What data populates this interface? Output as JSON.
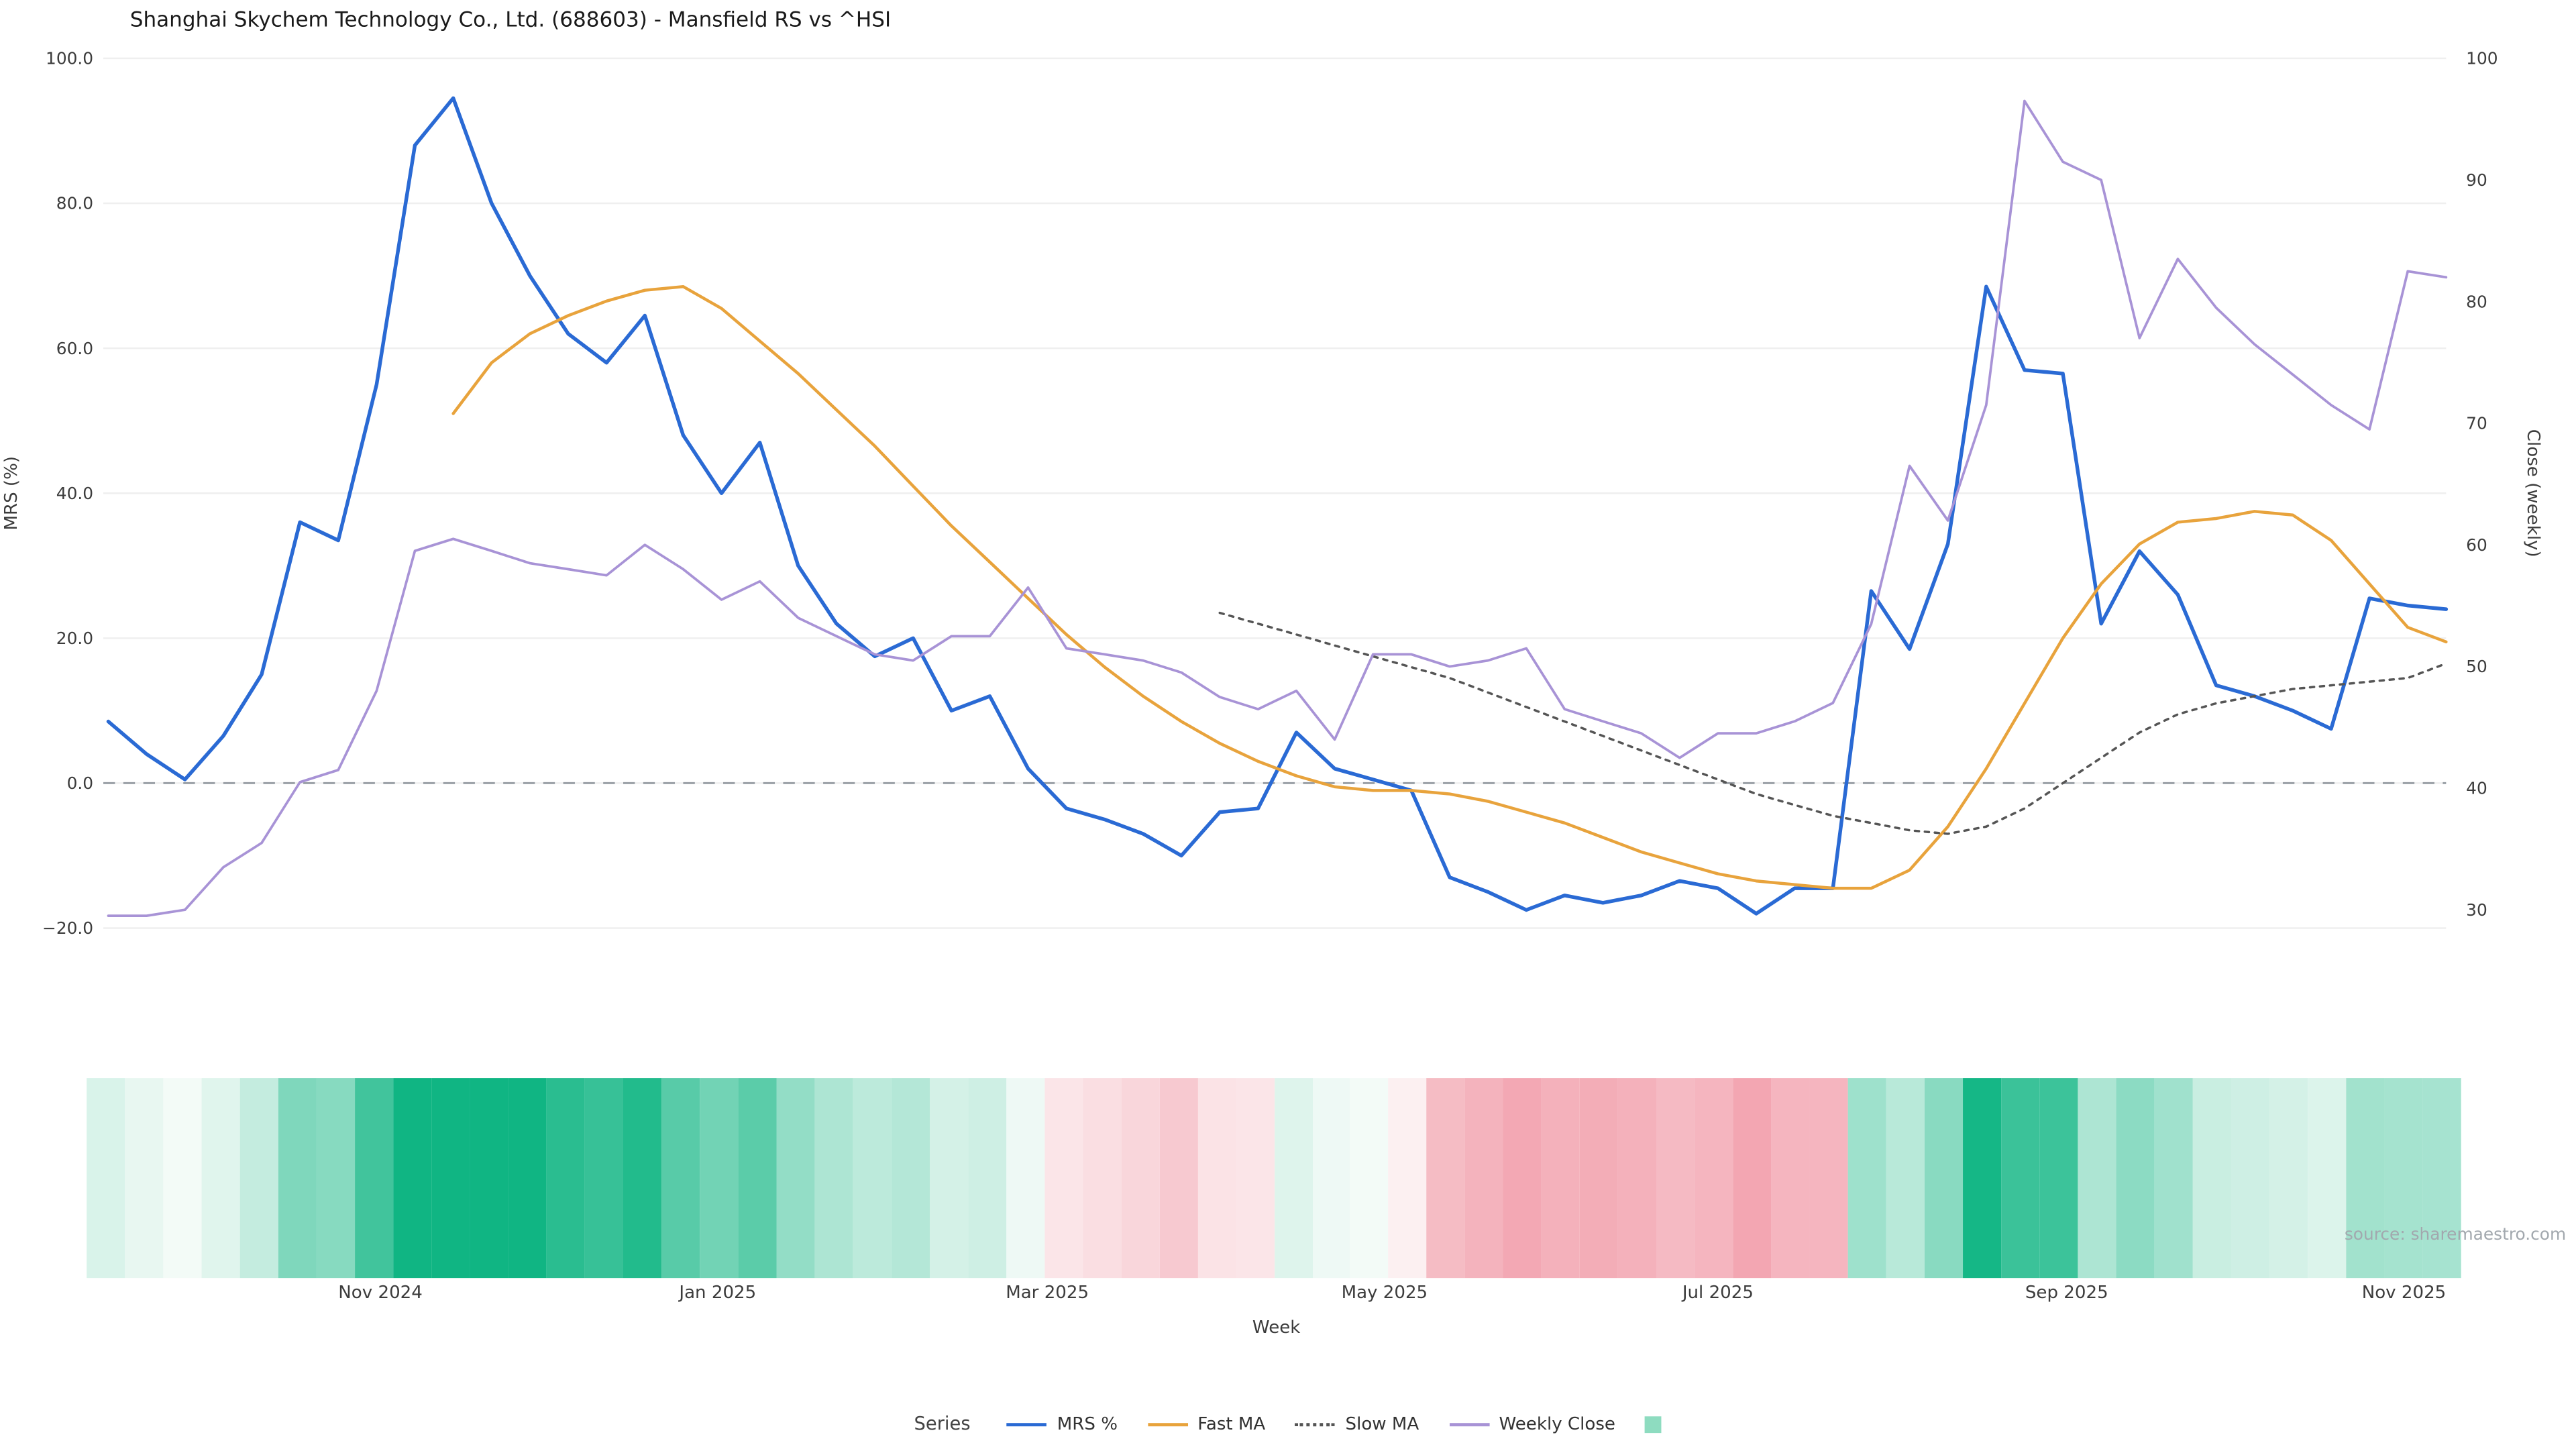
{
  "title": "Shanghai Skychem Technology Co., Ltd. (688603) - Mansfield RS vs ^HSI",
  "source_note": "source: sharemaestro.com",
  "axes": {
    "left": {
      "label": "MRS (%)",
      "ticks": [
        {
          "label": "100.0",
          "value": 100
        },
        {
          "label": "80.0",
          "value": 80
        },
        {
          "label": "60.0",
          "value": 60
        },
        {
          "label": "40.0",
          "value": 40
        },
        {
          "label": "20.0",
          "value": 20
        },
        {
          "label": "0.0",
          "value": 0
        },
        {
          "label": "−20.0",
          "value": -20
        }
      ]
    },
    "right": {
      "label": "Close (weekly)",
      "ticks": [
        {
          "label": "100",
          "value": 100
        },
        {
          "label": "90",
          "value": 90
        },
        {
          "label": "80",
          "value": 80
        },
        {
          "label": "70",
          "value": 70
        },
        {
          "label": "60",
          "value": 60
        },
        {
          "label": "50",
          "value": 50
        },
        {
          "label": "40",
          "value": 40
        },
        {
          "label": "30",
          "value": 30
        }
      ]
    },
    "x": {
      "label": "Week",
      "ticks": [
        {
          "label": "Nov 2024",
          "pos": 7.1
        },
        {
          "label": "Jan 2025",
          "pos": 15.9
        },
        {
          "label": "Mar 2025",
          "pos": 24.5
        },
        {
          "label": "May 2025",
          "pos": 33.3
        },
        {
          "label": "Jul 2025",
          "pos": 42.0
        },
        {
          "label": "Sep 2025",
          "pos": 51.1
        },
        {
          "label": "Nov 2025",
          "pos": 59.9
        }
      ]
    }
  },
  "legend": {
    "title": "Series",
    "items": [
      {
        "label": "MRS %",
        "swatch": "line",
        "color": "#2a6ad4"
      },
      {
        "label": "Fast MA",
        "swatch": "line",
        "color": "#e8a33c"
      },
      {
        "label": "Slow MA",
        "swatch": "dotted",
        "color": "#555555"
      },
      {
        "label": "Weekly Close",
        "swatch": "line",
        "color": "#a893d6"
      },
      {
        "label": "",
        "swatch": "square",
        "color": "#8edcc0"
      }
    ]
  },
  "chart_data": {
    "type": "line",
    "title": "Shanghai Skychem Technology Co., Ltd. (688603) - Mansfield RS vs ^HSI",
    "xlabel": "Week",
    "ylabel_left": "MRS (%)",
    "ylabel_right": "Close (weekly)",
    "x_unit": "weekly points, Oct 2024 through Nov 2025",
    "n_points": 62,
    "x_tick_labels": [
      "Nov 2024",
      "Jan 2025",
      "Mar 2025",
      "May 2025",
      "Jul 2025",
      "Sep 2025",
      "Nov 2025"
    ],
    "left_ylim": [
      -25.7,
      100
    ],
    "right_ylim": [
      28.4,
      100
    ],
    "zero_reference_line": 0,
    "grid": "horizontal, faint",
    "legend_position": "bottom center",
    "series": [
      {
        "name": "MRS %",
        "axis": "left",
        "color": "#2a6ad4",
        "style": "solid",
        "width": 2.2,
        "values": [
          8.5,
          4,
          0.5,
          6.5,
          15,
          36,
          33.5,
          55,
          88,
          94.5,
          80,
          70,
          62,
          58,
          64.5,
          48,
          40,
          47,
          30,
          22,
          17.5,
          20,
          10,
          12,
          2,
          -3.5,
          -5,
          -7,
          -10,
          -4,
          -3.5,
          7,
          2,
          0.5,
          -1,
          -13,
          -15,
          -17.5,
          -15.5,
          -16.5,
          -15.5,
          -13.5,
          -14.5,
          -18,
          -14.5,
          -14.5,
          26.5,
          18.5,
          33,
          68.5,
          57,
          56.5,
          22,
          32,
          26,
          13.5,
          12,
          10,
          7.5,
          25.5,
          24.5,
          24
        ]
      },
      {
        "name": "Fast MA",
        "axis": "left",
        "color": "#e8a33c",
        "style": "solid",
        "width": 1.8,
        "values": [
          null,
          null,
          null,
          null,
          null,
          null,
          null,
          null,
          null,
          51,
          58,
          62,
          64.5,
          66.5,
          68,
          68.5,
          65.5,
          61,
          56.5,
          51.5,
          46.5,
          41,
          35.5,
          30.5,
          25.5,
          20.5,
          16,
          12,
          8.5,
          5.5,
          3,
          1,
          -0.5,
          -1,
          -1,
          -1.5,
          -2.5,
          -4,
          -5.5,
          -7.5,
          -9.5,
          -11,
          -12.5,
          -13.5,
          -14,
          -14.5,
          -14.5,
          -12,
          -6,
          2,
          11,
          20,
          27.5,
          33,
          36,
          36.5,
          37.5,
          37,
          33.5,
          27.5,
          21.5,
          19.5
        ]
      },
      {
        "name": "Slow MA",
        "axis": "left",
        "color": "#555555",
        "style": "dotted",
        "width": 1.4,
        "values": [
          null,
          null,
          null,
          null,
          null,
          null,
          null,
          null,
          null,
          null,
          null,
          null,
          null,
          null,
          null,
          null,
          null,
          null,
          null,
          null,
          null,
          null,
          null,
          null,
          null,
          null,
          null,
          null,
          null,
          23.5,
          22,
          20.5,
          19,
          17.5,
          16,
          14.5,
          12.5,
          10.5,
          8.5,
          6.5,
          4.5,
          2.5,
          0.5,
          -1.5,
          -3,
          -4.5,
          -5.5,
          -6.5,
          -7,
          -6,
          -3.5,
          0,
          3.5,
          7,
          9.5,
          11,
          12,
          13,
          13.5,
          14,
          14.5,
          16.5
        ]
      },
      {
        "name": "Weekly Close",
        "axis": "right",
        "color": "#a893d6",
        "style": "solid",
        "width": 1.5,
        "values": [
          29.5,
          29.5,
          30,
          33.5,
          35.5,
          40.5,
          41.5,
          48,
          59.5,
          60.5,
          59.5,
          58.5,
          58,
          57.5,
          60,
          58,
          55.5,
          57,
          54,
          52.5,
          51,
          50.5,
          52.5,
          52.5,
          56.5,
          51.5,
          51,
          50.5,
          49.5,
          47.5,
          46.5,
          48,
          44,
          51,
          51,
          50,
          50.5,
          51.5,
          46.5,
          45.5,
          44.5,
          42.5,
          44.5,
          44.5,
          45.5,
          47,
          53.5,
          66.5,
          62,
          71.5,
          96.5,
          91.5,
          90,
          77,
          83.5,
          79.5,
          76.5,
          74,
          71.5,
          69.5,
          82.5,
          82
        ]
      }
    ],
    "heatmap_strip": {
      "source_series": "MRS %",
      "note": "one vertical band per week below the plot; green intensity for positive MRS, pink intensity for negative MRS",
      "positive_color": "#10b583",
      "negative_color": "#f2a2ae",
      "positive_base": "#f5fbf8",
      "negative_base": "#fdf4f5",
      "positive_scale": 70,
      "negative_scale": 19
    }
  }
}
